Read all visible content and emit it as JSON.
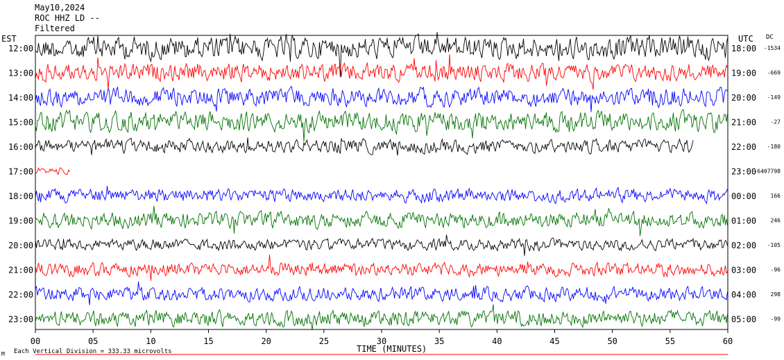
{
  "header": {
    "date": "May10,2024",
    "station": "ROC HHZ LD --",
    "filter": "Filtered"
  },
  "left_axis_title": "EST",
  "right_axis_title": "UTC",
  "dc_title": "DC",
  "footer_note": "Each Vertical Division = 333.33 microvolts",
  "footer_mark": "M",
  "colors": {
    "black": "#000000",
    "red": "#ff0000",
    "blue": "#0000ff",
    "green": "#007000"
  },
  "chart_data": {
    "type": "line",
    "title": "May10,2024",
    "xlabel": "TIME (MINUTES)",
    "xlim": [
      0,
      60
    ],
    "x_ticks": [
      "00",
      "05",
      "10",
      "15",
      "20",
      "25",
      "30",
      "35",
      "40",
      "45",
      "50",
      "55",
      "60"
    ],
    "rows": [
      {
        "est": "12:00",
        "utc": "18:00",
        "dc": "-1534",
        "color": "black",
        "amplitude": 1.0,
        "end_minute": 60
      },
      {
        "est": "13:00",
        "utc": "19:00",
        "dc": "-669",
        "color": "red",
        "amplitude": 0.8,
        "end_minute": 60
      },
      {
        "est": "14:00",
        "utc": "20:00",
        "dc": "-149",
        "color": "blue",
        "amplitude": 0.8,
        "end_minute": 60
      },
      {
        "est": "15:00",
        "utc": "21:00",
        "dc": "-27",
        "color": "green",
        "amplitude": 0.9,
        "end_minute": 60
      },
      {
        "est": "16:00",
        "utc": "22:00",
        "dc": "-180",
        "color": "black",
        "amplitude": 0.6,
        "end_minute": 57
      },
      {
        "est": "17:00",
        "utc": "23:00",
        "dc": "-6407798",
        "color": "red",
        "amplitude": 0.3,
        "end_minute": 3
      },
      {
        "est": "18:00",
        "utc": "00:00",
        "dc": "166",
        "color": "blue",
        "amplitude": 0.6,
        "end_minute": 60
      },
      {
        "est": "19:00",
        "utc": "01:00",
        "dc": "246",
        "color": "green",
        "amplitude": 0.7,
        "end_minute": 60
      },
      {
        "est": "20:00",
        "utc": "02:00",
        "dc": "-105",
        "color": "black",
        "amplitude": 0.5,
        "end_minute": 60
      },
      {
        "est": "21:00",
        "utc": "03:00",
        "dc": "-96",
        "color": "red",
        "amplitude": 0.6,
        "end_minute": 60
      },
      {
        "est": "22:00",
        "utc": "04:00",
        "dc": "298",
        "color": "blue",
        "amplitude": 0.6,
        "end_minute": 60
      },
      {
        "est": "23:00",
        "utc": "05:00",
        "dc": "-99",
        "color": "green",
        "amplitude": 0.7,
        "end_minute": 60
      }
    ]
  }
}
